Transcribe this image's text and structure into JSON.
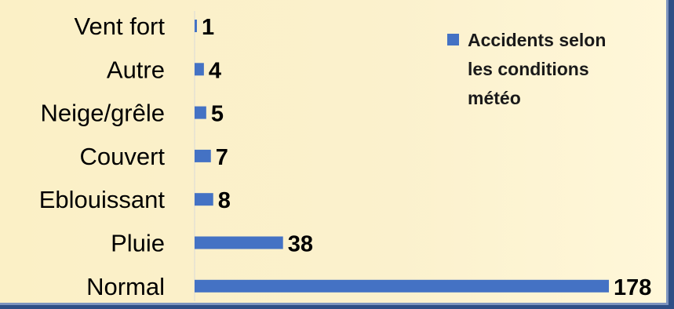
{
  "colors": {
    "bar": "#4472c4",
    "background": "#fbf0c6",
    "border": "#2f4f86"
  },
  "chart_data": {
    "type": "bar",
    "orientation": "horizontal",
    "categories": [
      "Vent fort",
      "Autre",
      "Neige/grêle",
      "Couvert",
      "Eblouissant",
      "Pluie",
      "Normal"
    ],
    "series": [
      {
        "name": "Accidents selon les conditions météo",
        "values": [
          1,
          4,
          5,
          7,
          8,
          38,
          178
        ]
      }
    ],
    "value_labels": [
      "1",
      "4",
      "5",
      "7",
      "8",
      "38",
      "178"
    ],
    "legend_lines": [
      "Accidents selon",
      "les conditions",
      "météo"
    ],
    "legend_position": "top-right",
    "grid": false
  }
}
